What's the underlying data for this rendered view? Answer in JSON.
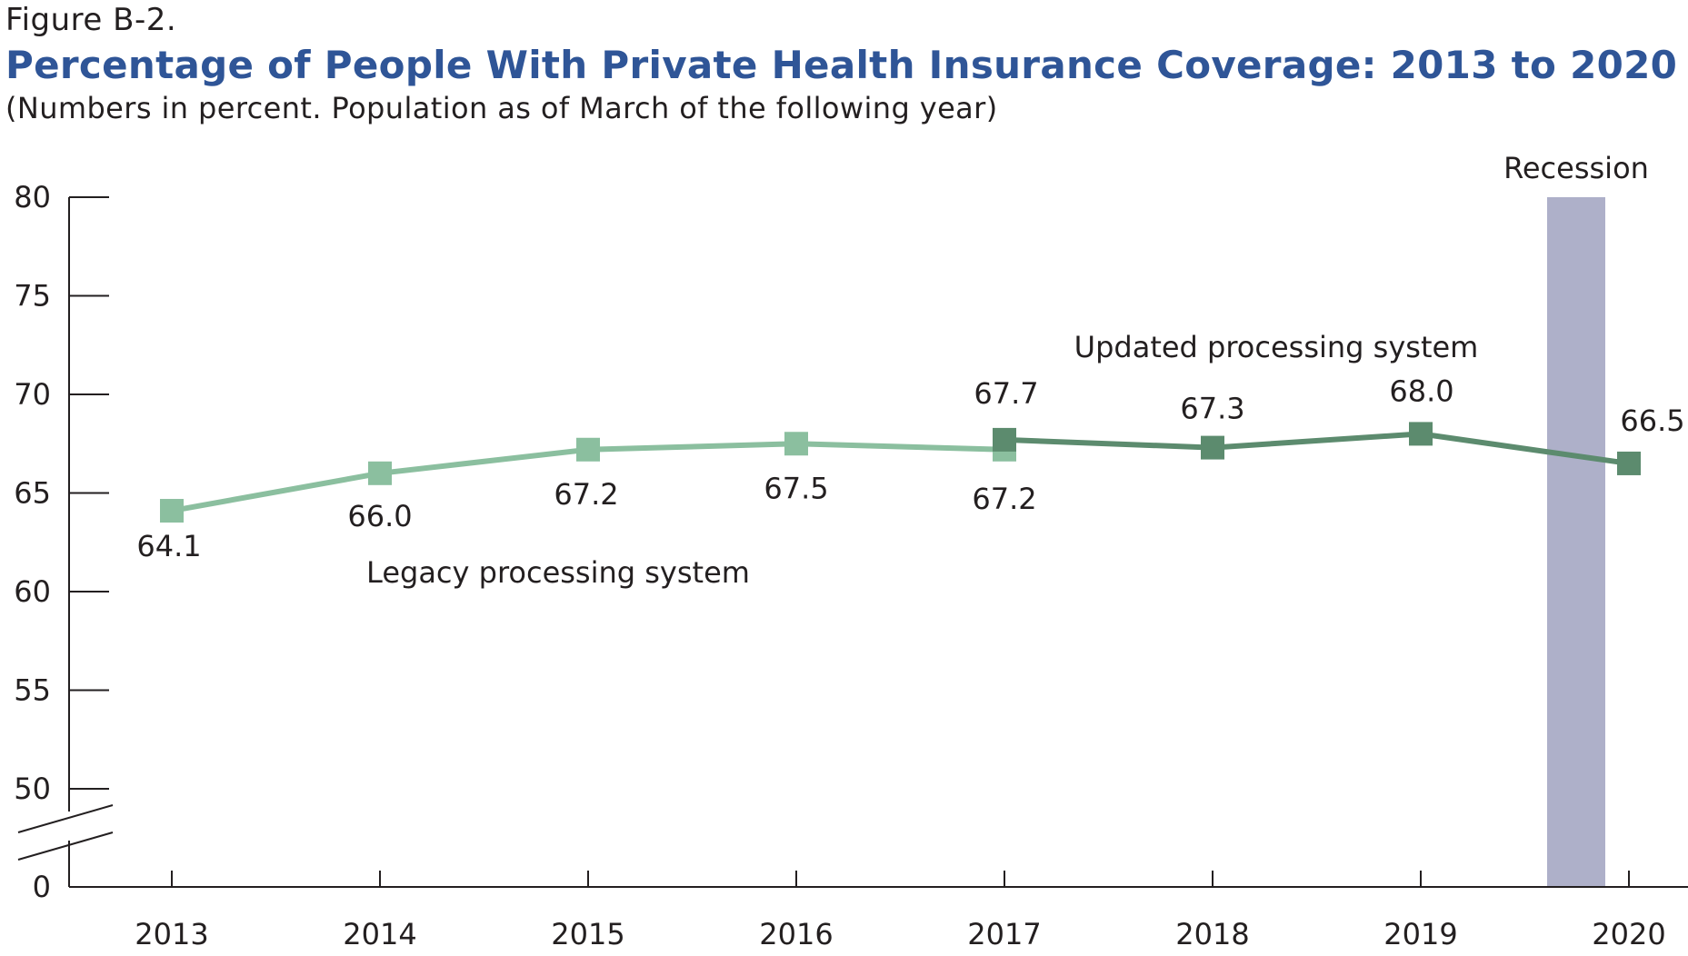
{
  "figure_label": "Figure B-2.",
  "title": "Percentage of People With Private Health Insurance Coverage: 2013 to 2020",
  "subtitle": "(Numbers in percent. Population as of March of the following year)",
  "colors": {
    "legacy": "#8bbf9f",
    "updated": "#5c8b6e",
    "recession": "#aeb0c9",
    "axis": "#231f20"
  },
  "chart_data": {
    "type": "line",
    "x": [
      "2013",
      "2014",
      "2015",
      "2016",
      "2017",
      "2018",
      "2019",
      "2020"
    ],
    "y_ticks": [
      "0",
      "50",
      "55",
      "60",
      "65",
      "70",
      "75",
      "80"
    ],
    "ylim": [
      50,
      80
    ],
    "axis_break": true,
    "grid": false,
    "series": [
      {
        "name": "Legacy processing system",
        "x": [
          "2013",
          "2014",
          "2015",
          "2016",
          "2017"
        ],
        "values": [
          64.1,
          66.0,
          67.2,
          67.5,
          67.2
        ],
        "labels": [
          "64.1",
          "66.0",
          "67.2",
          "67.5",
          "67.2"
        ]
      },
      {
        "name": "Updated processing system",
        "x": [
          "2017",
          "2018",
          "2019",
          "2020"
        ],
        "values": [
          67.7,
          67.3,
          68.0,
          66.5
        ],
        "labels": [
          "67.7",
          "67.3",
          "68.0",
          "66.5"
        ]
      }
    ],
    "shaded_regions": [
      {
        "label": "Recession",
        "x": "2020"
      }
    ]
  }
}
